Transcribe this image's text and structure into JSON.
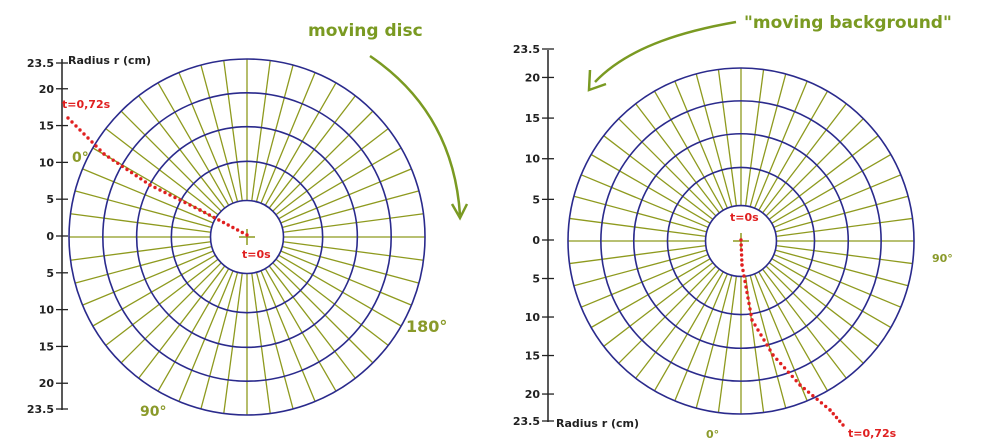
{
  "colors": {
    "ring": "#2a2a8c",
    "spoke": "#8e9a1e",
    "trajectory": "#e02020",
    "caption": "#7a9a22",
    "degree": "#8a9a2a",
    "axis": "#222222"
  },
  "left_panel": {
    "caption": "moving disc",
    "axis_title": "Radius r (cm)",
    "axis_ticks_top": [
      "23.5",
      "20",
      "15",
      "10",
      "5",
      "0"
    ],
    "axis_ticks_bottom": [
      "5",
      "10",
      "15",
      "20",
      "23.5"
    ],
    "angle_labels": [
      "0°",
      "90°",
      "180°"
    ],
    "time_start": "t=0s",
    "time_end": "t=0,72s",
    "arrow_direction": "clockwise"
  },
  "right_panel": {
    "caption": "\"moving background\"",
    "axis_title": "Radius r (cm)",
    "axis_ticks_top": [
      "23.5",
      "20",
      "15",
      "10",
      "5",
      "0"
    ],
    "axis_ticks_bottom": [
      "5",
      "10",
      "15",
      "20",
      "23.5"
    ],
    "angle_labels": [
      "90°",
      "0°"
    ],
    "time_start": "t=0s",
    "time_end": "t=0,72s",
    "arrow_direction": "counterclockwise"
  }
}
